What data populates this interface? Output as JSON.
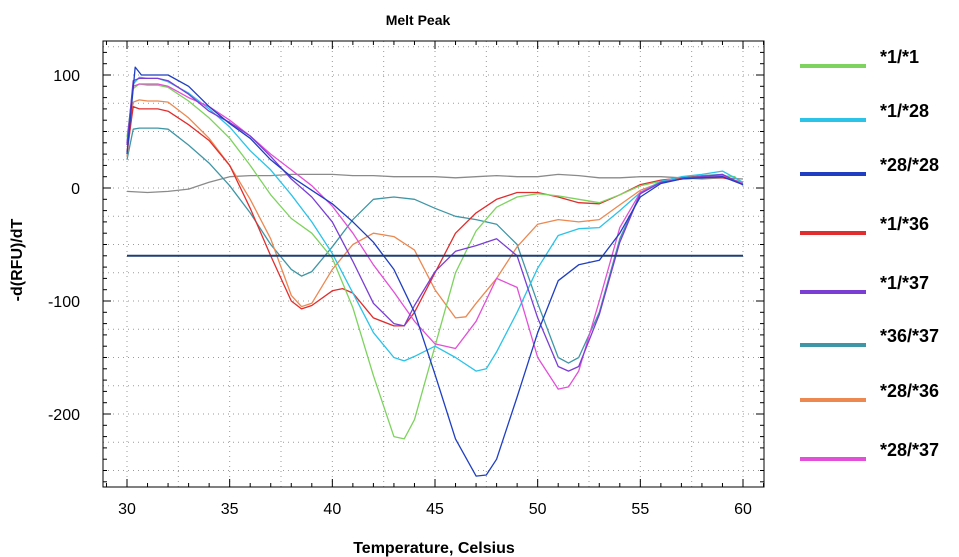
{
  "chart_data": {
    "type": "line",
    "title": "Melt Peak",
    "xlabel": "Temperature, Celsius",
    "ylabel": "-d(RFU)/dT",
    "xlim": [
      29,
      61
    ],
    "ylim": [
      -265,
      128
    ],
    "x_ticks": [
      30,
      35,
      40,
      45,
      50,
      55,
      60
    ],
    "y_ticks": [
      100,
      0,
      -100,
      -200
    ],
    "grid": true,
    "legend": "right",
    "threshold": {
      "value": -60,
      "color": "#1f3f74"
    },
    "series": [
      {
        "name": "*1/*1",
        "color": "#7dd35e",
        "points": [
          [
            30,
            45
          ],
          [
            30.3,
            88
          ],
          [
            30.6,
            92
          ],
          [
            31,
            91
          ],
          [
            31.5,
            91
          ],
          [
            32,
            89
          ],
          [
            33,
            77
          ],
          [
            34,
            62
          ],
          [
            35,
            44
          ],
          [
            36,
            20
          ],
          [
            37,
            -6
          ],
          [
            38,
            -27
          ],
          [
            39,
            -40
          ],
          [
            40,
            -62
          ],
          [
            41,
            -106
          ],
          [
            42,
            -166
          ],
          [
            43,
            -220
          ],
          [
            43.5,
            -222
          ],
          [
            44,
            -205
          ],
          [
            45,
            -140
          ],
          [
            46,
            -75
          ],
          [
            47,
            -38
          ],
          [
            48,
            -17
          ],
          [
            49,
            -8
          ],
          [
            50,
            -5
          ],
          [
            51,
            -7
          ],
          [
            52,
            -10
          ],
          [
            53,
            -13
          ],
          [
            54,
            -6
          ],
          [
            55,
            2
          ],
          [
            56,
            6
          ],
          [
            57,
            8
          ],
          [
            58,
            9
          ],
          [
            59,
            11
          ],
          [
            59.6,
            10
          ],
          [
            60,
            2
          ]
        ]
      },
      {
        "name": "*1/*28",
        "color": "#2bc3e8",
        "points": [
          [
            30,
            40
          ],
          [
            30.3,
            92
          ],
          [
            30.6,
            98
          ],
          [
            31,
            97
          ],
          [
            31.5,
            97
          ],
          [
            32,
            94
          ],
          [
            33,
            84
          ],
          [
            34,
            70
          ],
          [
            35,
            54
          ],
          [
            36,
            33
          ],
          [
            37,
            16
          ],
          [
            38,
            -6
          ],
          [
            39,
            -30
          ],
          [
            40,
            -58
          ],
          [
            41,
            -93
          ],
          [
            42,
            -128
          ],
          [
            43,
            -150
          ],
          [
            43.5,
            -153
          ],
          [
            44,
            -149
          ],
          [
            45,
            -140
          ],
          [
            46,
            -150
          ],
          [
            47,
            -162
          ],
          [
            47.5,
            -160
          ],
          [
            48,
            -145
          ],
          [
            49,
            -110
          ],
          [
            50,
            -71
          ],
          [
            51,
            -42
          ],
          [
            52,
            -36
          ],
          [
            53,
            -35
          ],
          [
            54,
            -20
          ],
          [
            55,
            -4
          ],
          [
            56,
            6
          ],
          [
            57,
            10
          ],
          [
            58,
            12
          ],
          [
            59,
            15
          ],
          [
            60,
            5
          ]
        ]
      },
      {
        "name": "*28/*28",
        "color": "#1f3ec2",
        "points": [
          [
            30,
            30
          ],
          [
            30.4,
            107
          ],
          [
            30.7,
            100
          ],
          [
            31,
            100
          ],
          [
            31.5,
            100
          ],
          [
            32,
            100
          ],
          [
            33,
            90
          ],
          [
            34,
            72
          ],
          [
            35,
            57
          ],
          [
            36,
            44
          ],
          [
            37,
            25
          ],
          [
            38,
            10
          ],
          [
            39,
            -2
          ],
          [
            40,
            -14
          ],
          [
            41,
            -30
          ],
          [
            42,
            -48
          ],
          [
            43,
            -72
          ],
          [
            44,
            -110
          ],
          [
            45,
            -165
          ],
          [
            46,
            -222
          ],
          [
            47,
            -255
          ],
          [
            47.5,
            -254
          ],
          [
            48,
            -240
          ],
          [
            49,
            -185
          ],
          [
            50,
            -128
          ],
          [
            51,
            -82
          ],
          [
            52,
            -68
          ],
          [
            53,
            -64
          ],
          [
            54,
            -40
          ],
          [
            55,
            -8
          ],
          [
            56,
            4
          ],
          [
            57,
            8
          ],
          [
            58,
            9
          ],
          [
            59,
            10
          ],
          [
            60,
            3
          ]
        ]
      },
      {
        "name": "*1/*36",
        "color": "#e12d2d",
        "points": [
          [
            30,
            32
          ],
          [
            30.3,
            72
          ],
          [
            30.6,
            70
          ],
          [
            31,
            70
          ],
          [
            31.5,
            70
          ],
          [
            32,
            68
          ],
          [
            33,
            56
          ],
          [
            34,
            42
          ],
          [
            35,
            20
          ],
          [
            36,
            -18
          ],
          [
            37,
            -60
          ],
          [
            38,
            -100
          ],
          [
            38.5,
            -107
          ],
          [
            39,
            -104
          ],
          [
            40,
            -91
          ],
          [
            40.5,
            -89
          ],
          [
            41,
            -93
          ],
          [
            42,
            -115
          ],
          [
            43,
            -122
          ],
          [
            43.5,
            -122
          ],
          [
            44,
            -110
          ],
          [
            45,
            -75
          ],
          [
            46,
            -40
          ],
          [
            47,
            -22
          ],
          [
            48,
            -10
          ],
          [
            49,
            -4
          ],
          [
            50,
            -4
          ],
          [
            51,
            -8
          ],
          [
            52,
            -13
          ],
          [
            53,
            -14
          ],
          [
            54,
            -6
          ],
          [
            55,
            3
          ],
          [
            56,
            7
          ],
          [
            57,
            9
          ],
          [
            58,
            10
          ],
          [
            59,
            9
          ],
          [
            60,
            5
          ]
        ]
      },
      {
        "name": "*1/*37",
        "color": "#7a3ed4",
        "points": [
          [
            30,
            38
          ],
          [
            30.3,
            95
          ],
          [
            30.6,
            97
          ],
          [
            31,
            97
          ],
          [
            31.5,
            97
          ],
          [
            32,
            95
          ],
          [
            33,
            83
          ],
          [
            34,
            68
          ],
          [
            35,
            58
          ],
          [
            36,
            46
          ],
          [
            37,
            28
          ],
          [
            38,
            8
          ],
          [
            39,
            -8
          ],
          [
            40,
            -30
          ],
          [
            41,
            -65
          ],
          [
            42,
            -102
          ],
          [
            43,
            -120
          ],
          [
            43.5,
            -122
          ],
          [
            44,
            -104
          ],
          [
            45,
            -74
          ],
          [
            46,
            -56
          ],
          [
            47,
            -51
          ],
          [
            48,
            -45
          ],
          [
            49,
            -60
          ],
          [
            50,
            -115
          ],
          [
            51,
            -158
          ],
          [
            51.5,
            -162
          ],
          [
            52,
            -158
          ],
          [
            53,
            -112
          ],
          [
            54,
            -48
          ],
          [
            55,
            -5
          ],
          [
            56,
            5
          ],
          [
            57,
            8
          ],
          [
            58,
            10
          ],
          [
            59,
            12
          ],
          [
            60,
            3
          ]
        ]
      },
      {
        "name": "*36/*37",
        "color": "#3f96a6",
        "points": [
          [
            30,
            25
          ],
          [
            30.3,
            52
          ],
          [
            30.6,
            53
          ],
          [
            31,
            53
          ],
          [
            31.5,
            53
          ],
          [
            32,
            52
          ],
          [
            33,
            38
          ],
          [
            34,
            22
          ],
          [
            35,
            2
          ],
          [
            36,
            -22
          ],
          [
            37,
            -50
          ],
          [
            38,
            -72
          ],
          [
            38.5,
            -78
          ],
          [
            39,
            -74
          ],
          [
            40,
            -52
          ],
          [
            41,
            -28
          ],
          [
            42,
            -10
          ],
          [
            43,
            -8
          ],
          [
            44,
            -10
          ],
          [
            45,
            -18
          ],
          [
            46,
            -25
          ],
          [
            47,
            -28
          ],
          [
            48,
            -32
          ],
          [
            49,
            -50
          ],
          [
            50,
            -102
          ],
          [
            51,
            -150
          ],
          [
            51.5,
            -155
          ],
          [
            52,
            -150
          ],
          [
            53,
            -110
          ],
          [
            54,
            -45
          ],
          [
            55,
            -5
          ],
          [
            56,
            5
          ],
          [
            57,
            9
          ],
          [
            58,
            11
          ],
          [
            59,
            12
          ],
          [
            60,
            3
          ]
        ]
      },
      {
        "name": "*28/*36",
        "color": "#ec8850",
        "points": [
          [
            30,
            28
          ],
          [
            30.3,
            76
          ],
          [
            30.6,
            78
          ],
          [
            31,
            77
          ],
          [
            31.5,
            77
          ],
          [
            32,
            76
          ],
          [
            33,
            62
          ],
          [
            34,
            44
          ],
          [
            35,
            20
          ],
          [
            36,
            -10
          ],
          [
            37,
            -45
          ],
          [
            38,
            -95
          ],
          [
            38.5,
            -105
          ],
          [
            39,
            -102
          ],
          [
            40,
            -72
          ],
          [
            41,
            -50
          ],
          [
            42,
            -40
          ],
          [
            43,
            -43
          ],
          [
            44,
            -55
          ],
          [
            45,
            -90
          ],
          [
            46,
            -115
          ],
          [
            46.5,
            -114
          ],
          [
            47,
            -102
          ],
          [
            48,
            -80
          ],
          [
            49,
            -52
          ],
          [
            50,
            -32
          ],
          [
            51,
            -28
          ],
          [
            52,
            -30
          ],
          [
            53,
            -28
          ],
          [
            54,
            -15
          ],
          [
            55,
            -2
          ],
          [
            56,
            5
          ],
          [
            57,
            8
          ],
          [
            58,
            9
          ],
          [
            59,
            10
          ],
          [
            60,
            3
          ]
        ]
      },
      {
        "name": "*28/*37",
        "color": "#e34fd8",
        "points": [
          [
            30,
            40
          ],
          [
            30.3,
            90
          ],
          [
            30.6,
            92
          ],
          [
            31,
            92
          ],
          [
            31.5,
            92
          ],
          [
            32,
            90
          ],
          [
            33,
            80
          ],
          [
            34,
            72
          ],
          [
            35,
            60
          ],
          [
            36,
            46
          ],
          [
            37,
            30
          ],
          [
            38,
            16
          ],
          [
            39,
            2
          ],
          [
            40,
            -16
          ],
          [
            41,
            -40
          ],
          [
            42,
            -68
          ],
          [
            43,
            -92
          ],
          [
            44,
            -118
          ],
          [
            45,
            -138
          ],
          [
            46,
            -142
          ],
          [
            47,
            -118
          ],
          [
            48,
            -80
          ],
          [
            49,
            -88
          ],
          [
            50,
            -150
          ],
          [
            51,
            -178
          ],
          [
            51.5,
            -176
          ],
          [
            52,
            -162
          ],
          [
            53,
            -100
          ],
          [
            54,
            -35
          ],
          [
            55,
            -4
          ],
          [
            56,
            5
          ],
          [
            57,
            8
          ],
          [
            58,
            10
          ],
          [
            59,
            11
          ],
          [
            60,
            4
          ]
        ]
      },
      {
        "name": "",
        "color": "#8a8a8a",
        "points": [
          [
            30,
            -3
          ],
          [
            31,
            -4
          ],
          [
            32,
            -3
          ],
          [
            33,
            -1
          ],
          [
            34,
            5
          ],
          [
            35,
            10
          ],
          [
            36,
            11
          ],
          [
            37,
            11
          ],
          [
            38,
            12
          ],
          [
            39,
            12
          ],
          [
            40,
            12
          ],
          [
            41,
            11
          ],
          [
            42,
            11
          ],
          [
            43,
            10
          ],
          [
            44,
            10
          ],
          [
            45,
            10
          ],
          [
            46,
            9
          ],
          [
            47,
            10
          ],
          [
            48,
            11
          ],
          [
            49,
            10
          ],
          [
            50,
            10
          ],
          [
            51,
            12
          ],
          [
            52,
            11
          ],
          [
            53,
            9
          ],
          [
            54,
            9
          ],
          [
            55,
            10
          ],
          [
            56,
            10
          ],
          [
            57,
            9
          ],
          [
            58,
            8
          ],
          [
            59,
            9
          ],
          [
            60,
            8
          ]
        ]
      }
    ]
  }
}
